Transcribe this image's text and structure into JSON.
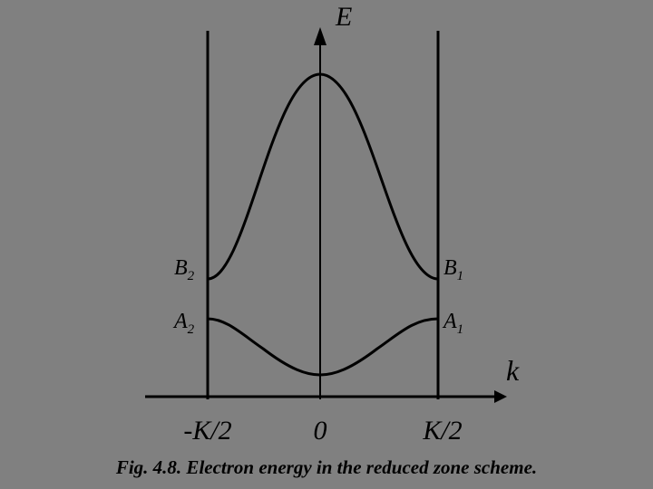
{
  "axes": {
    "y_label": "E",
    "x_label": "k"
  },
  "ticks": [
    "-K/2",
    "0",
    "K/2"
  ],
  "points": [
    {
      "main": "B",
      "sub": "2"
    },
    {
      "main": "B",
      "sub": "1"
    },
    {
      "main": "A",
      "sub": "2"
    },
    {
      "main": "A",
      "sub": "1"
    }
  ],
  "caption": "Fig. 4.8. Electron energy in the reduced zone scheme."
}
